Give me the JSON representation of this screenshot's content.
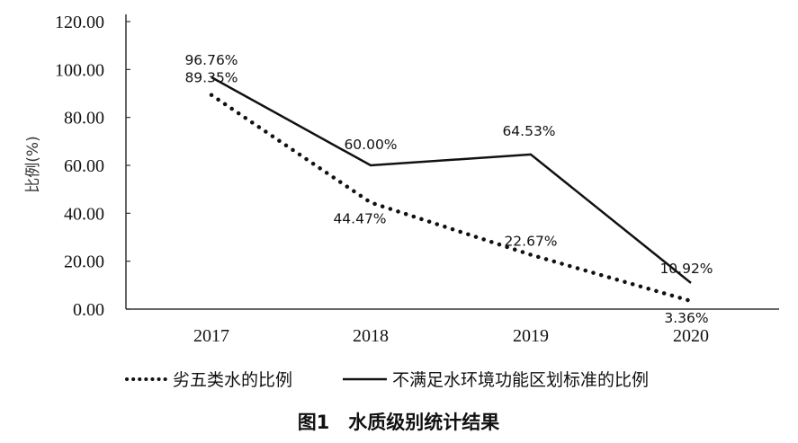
{
  "chart_data": {
    "type": "line",
    "categories": [
      "2017",
      "2018",
      "2019",
      "2020"
    ],
    "ylabel": "比例(%)",
    "ylim": [
      0,
      120
    ],
    "yticks": [
      "0.00",
      "20.00",
      "40.00",
      "60.00",
      "80.00",
      "100.00",
      "120.00"
    ],
    "series": [
      {
        "name": "劣五类水的比例",
        "style": "dotted",
        "values": [
          89.35,
          44.47,
          22.67,
          3.36
        ],
        "labels": [
          "89.35%",
          "44.47%",
          "22.67%",
          "3.36%"
        ]
      },
      {
        "name": "不满足水环境功能区划标准的比例",
        "style": "solid",
        "values": [
          96.76,
          60.0,
          64.53,
          10.92
        ],
        "labels": [
          "96.76%",
          "60.00%",
          "64.53%",
          "10.92%"
        ]
      }
    ],
    "legend_position": "bottom",
    "grid": false
  },
  "caption": "图1　水质级别统计结果",
  "colors": {
    "line": "#111111",
    "axis": "#333333"
  }
}
